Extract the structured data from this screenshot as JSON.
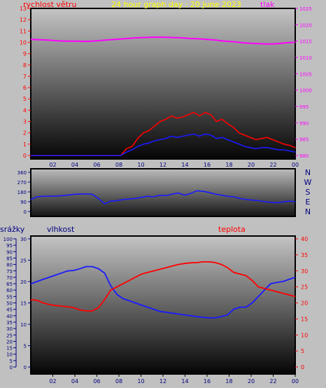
{
  "chart_data": [
    {
      "type": "line",
      "title": "24 hour graph day : 20 June 2023",
      "ylabel": "rychlost větru",
      "y2label": "tlak",
      "ylim": [
        0,
        13
      ],
      "y2lim": [
        980,
        1025
      ],
      "yticks": [
        0,
        1,
        2,
        3,
        4,
        5,
        6,
        7,
        8,
        9,
        10,
        11,
        12,
        13
      ],
      "y2ticks": [
        980,
        985,
        990,
        995,
        1000,
        1005,
        1010,
        1015,
        1020,
        1025
      ],
      "xticks": [
        "02",
        "04",
        "06",
        "08",
        "10",
        "12",
        "14",
        "16",
        "18",
        "20",
        "22",
        "00"
      ],
      "series": [
        {
          "name": "",
          "color": "#ff0000",
          "axis": "left",
          "values": [
            0,
            0,
            0,
            0,
            0,
            0,
            0,
            0,
            0,
            0,
            0,
            0,
            0,
            0,
            0,
            0,
            0,
            0.6,
            0.8,
            1.5,
            2.0,
            2.2,
            2.6,
            3.0,
            3.2,
            3.5,
            3.3,
            3.4,
            3.6,
            3.8,
            3.5,
            3.8,
            3.6,
            3.0,
            3.2,
            2.8,
            2.5,
            2.0,
            1.8,
            1.6,
            1.4,
            1.5,
            1.6,
            1.4,
            1.2,
            1.0,
            0.9,
            0.7
          ]
        },
        {
          "name": "",
          "color": "#1a1aff",
          "axis": "left",
          "values": [
            0,
            0,
            0,
            0,
            0,
            0,
            0,
            0,
            0,
            0,
            0,
            0,
            0,
            0,
            0,
            0,
            0,
            0.3,
            0.5,
            0.8,
            1.0,
            1.1,
            1.3,
            1.4,
            1.5,
            1.7,
            1.6,
            1.7,
            1.8,
            1.9,
            1.7,
            1.9,
            1.8,
            1.5,
            1.6,
            1.4,
            1.2,
            1.0,
            0.8,
            0.7,
            0.6,
            0.7,
            0.7,
            0.6,
            0.5,
            0.5,
            0.4,
            0.3
          ]
        },
        {
          "name": "",
          "color": "#ff00ff",
          "axis": "right",
          "values": [
            1015.5,
            1015.4,
            1015.3,
            1015.1,
            1015.0,
            1015.0,
            1014.9,
            1015.0,
            1015.2,
            1015.4,
            1015.6,
            1015.8,
            1016.0,
            1016.1,
            1016.2,
            1016.2,
            1016.1,
            1016.0,
            1015.8,
            1015.7,
            1015.5,
            1015.3,
            1015.0,
            1014.8,
            1014.5,
            1014.3,
            1014.2,
            1014.1,
            1014.2,
            1014.5,
            1014.6
          ]
        }
      ]
    },
    {
      "type": "line",
      "ylim": [
        0,
        360
      ],
      "yticks": [
        0,
        90,
        180,
        270,
        360
      ],
      "xticks": [
        "02",
        "04",
        "06",
        "08",
        "10",
        "12",
        "14",
        "16",
        "18",
        "20",
        "22",
        "00"
      ],
      "compass": [
        "N",
        "W",
        "S",
        "E",
        "N"
      ],
      "series": [
        {
          "name": "",
          "color": "#1a1aff",
          "values": [
            110,
            135,
            140,
            140,
            142,
            145,
            150,
            158,
            160,
            160,
            158,
            120,
            70,
            95,
            100,
            110,
            115,
            120,
            130,
            140,
            135,
            150,
            145,
            160,
            170,
            150,
            165,
            190,
            185,
            175,
            160,
            150,
            140,
            135,
            120,
            110,
            105,
            100,
            90,
            85,
            80,
            88,
            95,
            90
          ]
        }
      ]
    },
    {
      "type": "line",
      "label_precip": "srážky",
      "label_humidity": "vlhkost",
      "label_temp": "teplota",
      "precip_ylim": [
        0,
        100
      ],
      "precip_ticks": [
        0,
        5,
        10,
        15,
        20,
        25,
        30,
        35,
        40,
        45,
        50,
        55,
        60,
        65,
        70,
        75,
        80,
        85,
        90,
        95,
        100
      ],
      "humidity_ylim": [
        0,
        30
      ],
      "humidity_ticks": [
        0,
        5,
        10,
        15,
        20,
        25,
        30
      ],
      "temp_ylim": [
        0,
        40
      ],
      "temp_ticks": [
        0,
        5,
        10,
        15,
        20,
        25,
        30,
        35,
        40
      ],
      "xticks": [
        "02",
        "04",
        "06",
        "08",
        "10",
        "12",
        "14",
        "16",
        "18",
        "20",
        "22",
        "00"
      ],
      "series": [
        {
          "name": "",
          "color": "#1a1aff",
          "axis": "humidity",
          "values": [
            19.5,
            20,
            20.5,
            21,
            21.5,
            22,
            22.5,
            22.6,
            23,
            23.5,
            23.5,
            23,
            22,
            19,
            17,
            16,
            15.5,
            15,
            14.5,
            14,
            13.5,
            13,
            12.8,
            12.6,
            12.4,
            12.2,
            12.0,
            11.8,
            11.6,
            11.5,
            11.5,
            11.8,
            12.2,
            13.5,
            14,
            14,
            15,
            16.5,
            18,
            19.5,
            19.8,
            20,
            20.5,
            21
          ]
        },
        {
          "name": "",
          "color": "#ff0000",
          "axis": "temp",
          "values": [
            21,
            20.8,
            20,
            19.5,
            19.2,
            19,
            18.8,
            18.5,
            17.8,
            17.5,
            17.5,
            18.5,
            21,
            24,
            25,
            26,
            27,
            28,
            29,
            29.5,
            30,
            30.5,
            31,
            31.5,
            32,
            32.3,
            32.5,
            32.6,
            32.8,
            32.8,
            32.6,
            32,
            31,
            29.5,
            29,
            28.5,
            27,
            25,
            24.5,
            24,
            23.5,
            23,
            22.5,
            22
          ]
        }
      ]
    }
  ]
}
